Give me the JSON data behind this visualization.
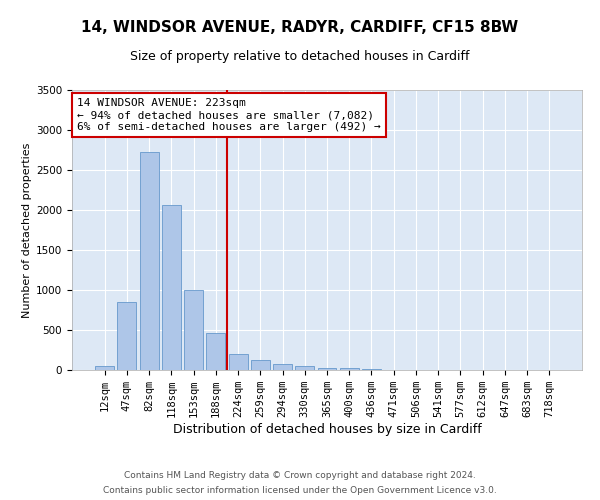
{
  "title1": "14, WINDSOR AVENUE, RADYR, CARDIFF, CF15 8BW",
  "title2": "Size of property relative to detached houses in Cardiff",
  "xlabel": "Distribution of detached houses by size in Cardiff",
  "ylabel": "Number of detached properties",
  "categories": [
    "12sqm",
    "47sqm",
    "82sqm",
    "118sqm",
    "153sqm",
    "188sqm",
    "224sqm",
    "259sqm",
    "294sqm",
    "330sqm",
    "365sqm",
    "400sqm",
    "436sqm",
    "471sqm",
    "506sqm",
    "541sqm",
    "577sqm",
    "612sqm",
    "647sqm",
    "683sqm",
    "718sqm"
  ],
  "values": [
    55,
    850,
    2720,
    2060,
    1000,
    460,
    200,
    130,
    75,
    55,
    30,
    20,
    10,
    5,
    2,
    1,
    0,
    0,
    0,
    0,
    0
  ],
  "bar_color": "#aec6e8",
  "bar_edge_color": "#6699cc",
  "annotation_text": "14 WINDSOR AVENUE: 223sqm\n← 94% of detached houses are smaller (7,082)\n6% of semi-detached houses are larger (492) →",
  "box_color": "#cc0000",
  "bg_color": "#dde8f5",
  "footer1": "Contains HM Land Registry data © Crown copyright and database right 2024.",
  "footer2": "Contains public sector information licensed under the Open Government Licence v3.0.",
  "ylim": [
    0,
    3500
  ],
  "yticks": [
    0,
    500,
    1000,
    1500,
    2000,
    2500,
    3000,
    3500
  ],
  "vline_x": 5.5,
  "title1_fontsize": 11,
  "title2_fontsize": 9,
  "xlabel_fontsize": 9,
  "ylabel_fontsize": 8,
  "tick_fontsize": 7.5,
  "annot_fontsize": 8,
  "footer_fontsize": 6.5
}
